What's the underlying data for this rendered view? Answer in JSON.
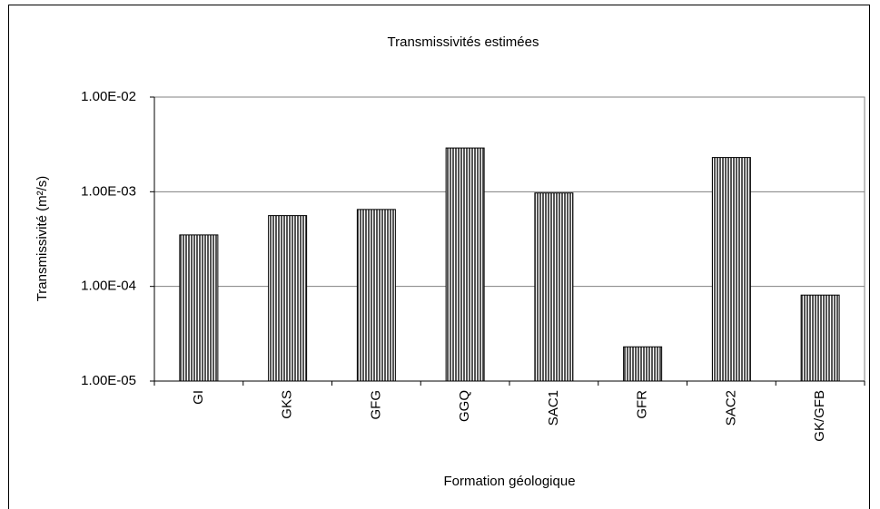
{
  "chart_data": {
    "type": "bar",
    "title": "Transmissivités estimées",
    "x_label": "Formation géologique",
    "y_label": "Transmissivité (m²/s)",
    "categories": [
      "GI",
      "GKS",
      "GFG",
      "GGQ",
      "SAC1",
      "GFR",
      "SAC2",
      "GK/GFB"
    ],
    "values": [
      0.00035,
      0.00056,
      0.00065,
      0.0029,
      0.00097,
      2.3e-05,
      0.0023,
      8.1e-05
    ],
    "color": "#555555",
    "log_scale": true,
    "ylim": [
      1e-05,
      0.01
    ],
    "yticks": [
      {
        "value": 1e-05,
        "label": "1.00E-05"
      },
      {
        "value": 0.0001,
        "label": "1.00E-04"
      },
      {
        "value": 0.001,
        "label": "1.00E-03"
      },
      {
        "value": 0.01,
        "label": "1.00E-02"
      }
    ],
    "grid": true
  }
}
